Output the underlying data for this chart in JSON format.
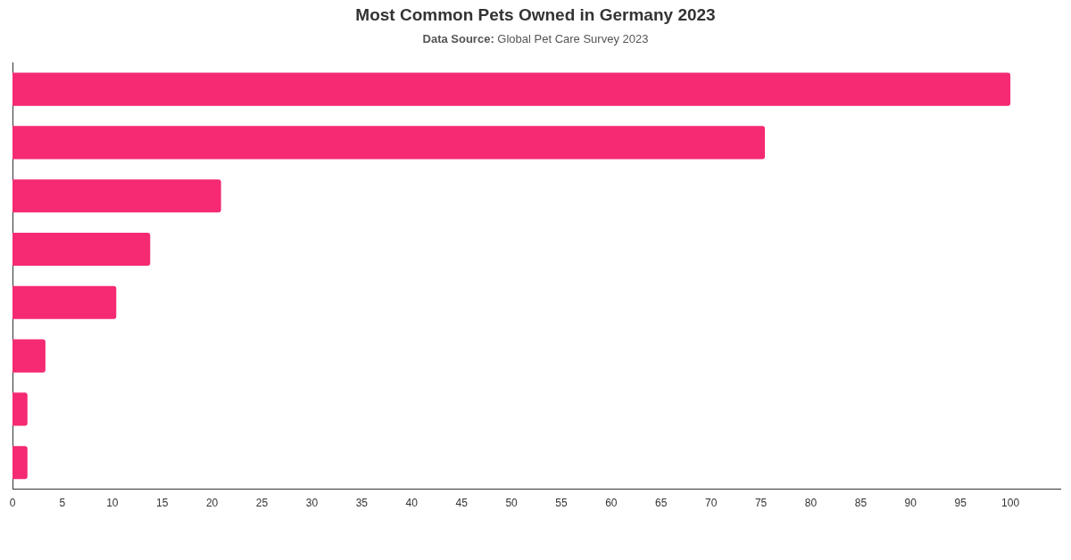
{
  "chart_data": {
    "type": "bar",
    "orientation": "horizontal",
    "title": "Most Common Pets Owned in Germany 2023",
    "subtitle": "Data Source: Global Pet Care Survey 2023",
    "categories": [
      null,
      null,
      null,
      null,
      null,
      null,
      null,
      null
    ],
    "values": [
      100,
      75.4,
      20.9,
      13.8,
      10.4,
      3.3,
      1.5,
      1.5
    ],
    "color": "#f52a73",
    "xlim": [
      0,
      105
    ],
    "xticks": [
      0,
      5,
      10,
      15,
      20,
      25,
      30,
      35,
      40,
      45,
      50,
      55,
      60,
      65,
      70,
      75,
      80,
      85,
      90,
      95,
      100
    ],
    "grid": false,
    "legend": false
  }
}
